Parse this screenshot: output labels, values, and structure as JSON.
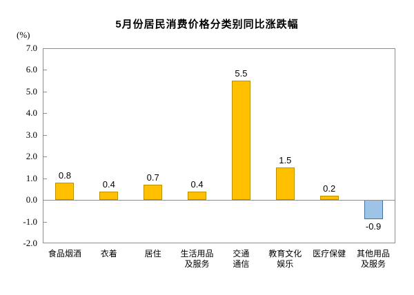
{
  "chart_data": {
    "type": "bar",
    "title": "5月份居民消费价格分类别同比涨跌幅",
    "y_unit": "(%)",
    "categories": [
      "食品烟酒",
      "衣着",
      "居住",
      "生活用品及服务",
      "交通通信",
      "教育文化娱乐",
      "医疗保健",
      "其他用品及服务"
    ],
    "category_label_lines": [
      [
        "食品烟酒"
      ],
      [
        "衣着"
      ],
      [
        "居住"
      ],
      [
        "生活用品",
        "及服务"
      ],
      [
        "交通",
        "通信"
      ],
      [
        "教育文化",
        "娱乐"
      ],
      [
        "医疗保健"
      ],
      [
        "其他用品",
        "及服务"
      ]
    ],
    "values": [
      0.8,
      0.4,
      0.7,
      0.4,
      5.5,
      1.5,
      0.2,
      -0.9
    ],
    "value_labels": [
      "0.8",
      "0.4",
      "0.7",
      "0.4",
      "5.5",
      "1.5",
      "0.2",
      "-0.9"
    ],
    "ylim": [
      -2.0,
      7.0
    ],
    "y_ticks": [
      "7.0",
      "6.0",
      "5.0",
      "4.0",
      "3.0",
      "2.0",
      "1.0",
      "0.0",
      "-1.0",
      "-2.0"
    ],
    "grid": false,
    "legend": "none",
    "xlabel": "",
    "ylabel": "(%)",
    "colors": {
      "positive_fill": "#FFC000",
      "positive_border": "#BF8F00",
      "negative_fill": "#9DC3E6",
      "negative_border": "#41719C",
      "axis": "#8c8c8c",
      "text": "#000000"
    }
  }
}
